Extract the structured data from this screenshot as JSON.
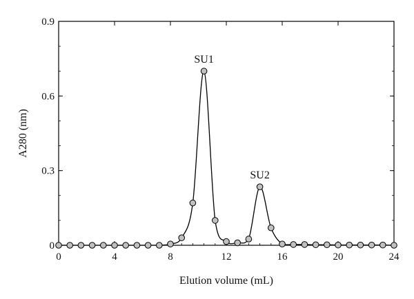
{
  "chart_data": {
    "type": "line",
    "xlabel": "Elution volume (mL)",
    "ylabel": "A280 (nm)",
    "xlim": [
      0,
      24
    ],
    "ylim": [
      0,
      0.9
    ],
    "xticks": [
      0,
      4,
      8,
      12,
      16,
      20,
      24
    ],
    "yticks": [
      0,
      0.3,
      0.6,
      0.9
    ],
    "ytick_labels": [
      "0",
      "0.3",
      "0.6",
      "0.9"
    ],
    "grid": false,
    "marker": "circle",
    "colors": {
      "line": "#000000",
      "marker_fill": "#c0c0c0",
      "marker_stroke": "#000000"
    },
    "points": [
      [
        0,
        0
      ],
      [
        0.8,
        0
      ],
      [
        1.6,
        0
      ],
      [
        2.4,
        0
      ],
      [
        3.2,
        0
      ],
      [
        4.0,
        0
      ],
      [
        4.8,
        0
      ],
      [
        5.6,
        0
      ],
      [
        6.4,
        0
      ],
      [
        7.2,
        0
      ],
      [
        8.0,
        0.005
      ],
      [
        8.8,
        0.03
      ],
      [
        9.6,
        0.17
      ],
      [
        10.4,
        0.7
      ],
      [
        11.2,
        0.1
      ],
      [
        12.0,
        0.015
      ],
      [
        12.8,
        0.01
      ],
      [
        13.6,
        0.025
      ],
      [
        14.4,
        0.235
      ],
      [
        15.2,
        0.07
      ],
      [
        16.0,
        0.005
      ],
      [
        16.8,
        0.003
      ],
      [
        17.6,
        0.003
      ],
      [
        18.4,
        0.002
      ],
      [
        19.2,
        0.002
      ],
      [
        20.0,
        0.001
      ],
      [
        20.8,
        0.001
      ],
      [
        21.6,
        0.001
      ],
      [
        22.4,
        0.001
      ],
      [
        23.2,
        0.001
      ],
      [
        24.0,
        0
      ]
    ],
    "annotations": [
      {
        "text": "SU1",
        "x": 10.4,
        "y": 0.7
      },
      {
        "text": "SU2",
        "x": 14.4,
        "y": 0.235
      }
    ]
  }
}
